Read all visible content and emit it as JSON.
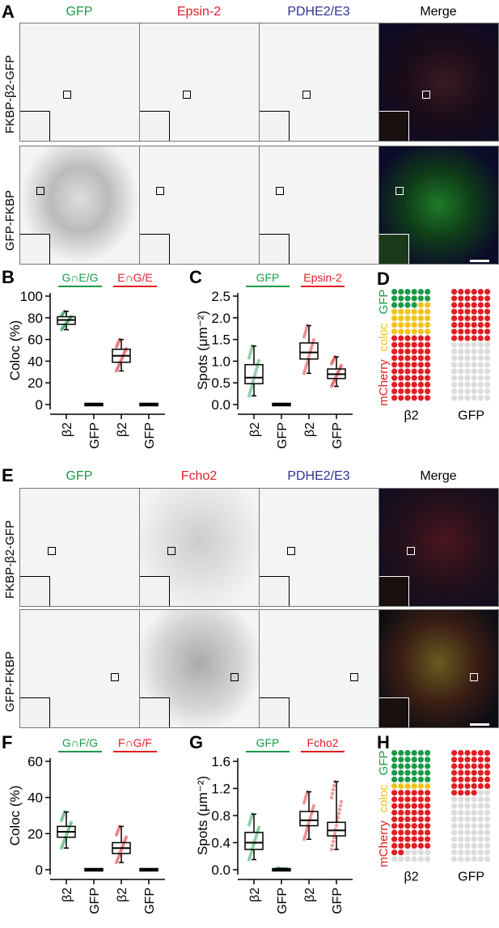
{
  "panels": {
    "A": {
      "letter": "A",
      "columns": [
        "GFP",
        "Epsin-2",
        "PDHE2/E3",
        "Merge"
      ],
      "rows": [
        "FKBP-β2-GFP",
        "GFP-FKBP"
      ]
    },
    "E": {
      "letter": "E",
      "columns": [
        "GFP",
        "Fcho2",
        "PDHE2/E3",
        "Merge"
      ],
      "rows": [
        "FKBP-β2-GFP",
        "GFP-FKBP"
      ]
    },
    "D": {
      "letter": "D"
    },
    "H": {
      "letter": "H"
    }
  },
  "colors": {
    "green": "#1a9a48",
    "red": "#e01e24",
    "blue": "#2e3192",
    "yellow": "#f2c318",
    "gray": "#dcdcdc"
  },
  "chart_data": [
    {
      "id": "B",
      "letter": "B",
      "type": "box",
      "ylabel": "Coloc (%)",
      "ylim": [
        0,
        100
      ],
      "yticks": [
        "0",
        "20",
        "40",
        "60",
        "80",
        "100"
      ],
      "categories": [
        "β2",
        "GFP",
        "β2",
        "GFP"
      ],
      "groups": [
        {
          "label": "G∩E/G",
          "color": "#1a9a48",
          "span": [
            0,
            1
          ]
        },
        {
          "label": "E∩G/E",
          "color": "#e01e24",
          "span": [
            2,
            3
          ]
        }
      ],
      "boxes": [
        {
          "q1": 74,
          "median": 78,
          "q3": 81,
          "min": 69,
          "max": 86,
          "color": "#1a9a48"
        },
        {
          "q1": 0,
          "median": 0,
          "q3": 0,
          "min": 0,
          "max": 0,
          "color": "#1a9a48"
        },
        {
          "q1": 39,
          "median": 45,
          "q3": 51,
          "min": 31,
          "max": 60,
          "color": "#e01e24"
        },
        {
          "q1": 0,
          "median": 0,
          "q3": 0,
          "min": 0,
          "max": 0,
          "color": "#e01e24"
        }
      ]
    },
    {
      "id": "C",
      "letter": "C",
      "type": "box",
      "ylabel": "Spots (μm⁻²)",
      "ylim": [
        0,
        2.5
      ],
      "yticks": [
        "0.0",
        "0.5",
        "1.0",
        "1.5",
        "2.0",
        "2.5"
      ],
      "categories": [
        "β2",
        "GFP",
        "β2",
        "GFP"
      ],
      "groups": [
        {
          "label": "GFP",
          "color": "#1a9a48",
          "span": [
            0,
            1
          ]
        },
        {
          "label": "Epsin-2",
          "color": "#e01e24",
          "span": [
            2,
            3
          ]
        }
      ],
      "boxes": [
        {
          "q1": 0.48,
          "median": 0.62,
          "q3": 0.92,
          "min": 0.2,
          "max": 1.35,
          "color": "#1a9a48"
        },
        {
          "q1": 0,
          "median": 0,
          "q3": 0,
          "min": 0,
          "max": 0,
          "color": "#1a9a48"
        },
        {
          "q1": 1.05,
          "median": 1.2,
          "q3": 1.42,
          "min": 0.72,
          "max": 1.82,
          "color": "#e01e24"
        },
        {
          "q1": 0.6,
          "median": 0.7,
          "q3": 0.82,
          "min": 0.42,
          "max": 1.1,
          "color": "#e01e24"
        }
      ]
    },
    {
      "id": "F",
      "letter": "F",
      "type": "box",
      "ylabel": "Coloc (%)",
      "ylim": [
        0,
        60
      ],
      "yticks": [
        "0",
        "20",
        "40",
        "60"
      ],
      "categories": [
        "β2",
        "GFP",
        "β2",
        "GFP"
      ],
      "groups": [
        {
          "label": "G∩F/G",
          "color": "#1a9a48",
          "span": [
            0,
            1
          ]
        },
        {
          "label": "F∩G/F",
          "color": "#e01e24",
          "span": [
            2,
            3
          ]
        }
      ],
      "boxes": [
        {
          "q1": 18,
          "median": 21,
          "q3": 24,
          "min": 12,
          "max": 32,
          "color": "#1a9a48"
        },
        {
          "q1": 0,
          "median": 0,
          "q3": 0,
          "min": 0,
          "max": 0,
          "color": "#1a9a48"
        },
        {
          "q1": 9,
          "median": 12,
          "q3": 15,
          "min": 4,
          "max": 24,
          "color": "#e01e24"
        },
        {
          "q1": 0,
          "median": 0,
          "q3": 0,
          "min": 0,
          "max": 0,
          "color": "#e01e24"
        }
      ]
    },
    {
      "id": "G",
      "letter": "G",
      "type": "box",
      "ylabel": "Spots (μm⁻²)",
      "ylim": [
        0,
        1.6
      ],
      "yticks": [
        "0.0",
        "0.4",
        "0.8",
        "1.2",
        "1.6"
      ],
      "categories": [
        "β2",
        "GFP",
        "β2",
        "GFP"
      ],
      "groups": [
        {
          "label": "GFP",
          "color": "#1a9a48",
          "span": [
            0,
            1
          ]
        },
        {
          "label": "Fcho2",
          "color": "#e01e24",
          "span": [
            2,
            3
          ]
        }
      ],
      "boxes": [
        {
          "q1": 0.3,
          "median": 0.4,
          "q3": 0.55,
          "min": 0.15,
          "max": 0.82,
          "color": "#1a9a48"
        },
        {
          "q1": 0,
          "median": 0,
          "q3": 0,
          "min": 0,
          "max": 0.02,
          "color": "#1a9a48"
        },
        {
          "q1": 0.65,
          "median": 0.73,
          "q3": 0.86,
          "min": 0.45,
          "max": 1.15,
          "color": "#e01e24"
        },
        {
          "q1": 0.5,
          "median": 0.58,
          "q3": 0.7,
          "min": 0.3,
          "max": 1.3,
          "color": "#e01e24"
        }
      ]
    }
  ],
  "waffles": [
    {
      "id": "D",
      "labels": [
        "GFP",
        "coloc",
        "mCherry"
      ],
      "categories": [
        "β2",
        "GFP"
      ],
      "columns": [
        {
          "green": 16,
          "yellow": 26,
          "red": 60,
          "gray": 0
        },
        {
          "green": 0,
          "yellow": 0,
          "red": 48,
          "gray": 54
        }
      ]
    },
    {
      "id": "H",
      "labels": [
        "GFP",
        "coloc",
        "mCherry"
      ],
      "categories": [
        "β2",
        "GFP"
      ],
      "columns": [
        {
          "green": 30,
          "yellow": 6,
          "red": 56,
          "gray": 10
        },
        {
          "green": 0,
          "yellow": 0,
          "red": 40,
          "gray": 62
        }
      ]
    }
  ]
}
